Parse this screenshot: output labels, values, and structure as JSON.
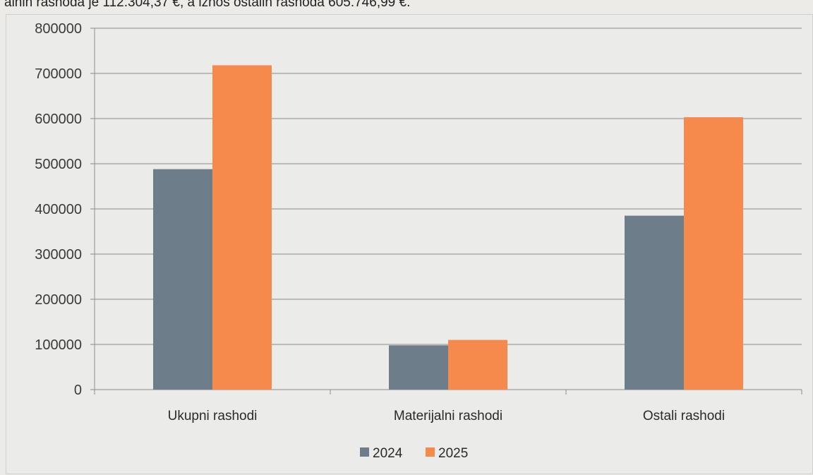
{
  "header_text": "alnih rashoda je 112.304,37 €, a iznos ostalih rashoda 605.746,99 €.",
  "colors": {
    "series_2024": "#6e7d8a",
    "series_2025": "#f58a4c",
    "grid": "#8c8c8c",
    "axis": "#8c8c8c"
  },
  "chart_data": {
    "type": "bar",
    "categories": [
      "Ukupni rashodi",
      "Materijalni rashodi",
      "Ostali rashodi"
    ],
    "series": [
      {
        "name": "2024",
        "values": [
          488000,
          98000,
          385000
        ]
      },
      {
        "name": "2025",
        "values": [
          718000,
          110000,
          603000
        ]
      }
    ],
    "yticks": [
      "0",
      "100000",
      "200000",
      "300000",
      "400000",
      "500000",
      "600000",
      "700000",
      "800000"
    ],
    "ylim": [
      0,
      800000
    ],
    "grid": true,
    "legend_position": "bottom-center"
  }
}
